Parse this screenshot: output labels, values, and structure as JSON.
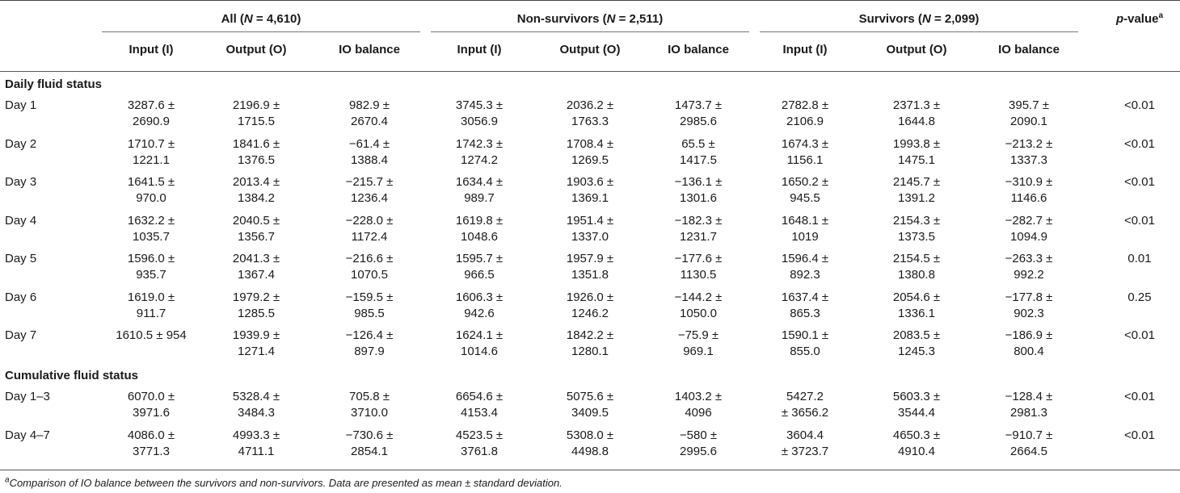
{
  "header": {
    "groups": [
      {
        "label": "All (N = 4,610)",
        "name_prefix": "All (",
        "n_symbol": "N",
        "name_suffix": " = 4,610)"
      },
      {
        "label": "Non-survivors (N = 2,511)",
        "name_prefix": "Non-survivors (",
        "n_symbol": "N",
        "name_suffix": " = 2,511)"
      },
      {
        "label": "Survivors (N = 2,099)",
        "name_prefix": "Survivors (",
        "n_symbol": "N",
        "name_suffix": " = 2,099)"
      }
    ],
    "subcolumns": [
      "Input (I)",
      "Output (O)",
      "IO balance"
    ],
    "pvalue_label": "p",
    "pvalue_suffix": "-value",
    "pvalue_sup": "a"
  },
  "sections": [
    {
      "title": "Daily fluid status",
      "rows": [
        {
          "label": "Day 1",
          "values": [
            [
              "3287.6 ±",
              "2690.9"
            ],
            [
              "2196.9 ±",
              "1715.5"
            ],
            [
              "982.9 ±",
              "2670.4"
            ],
            [
              "3745.3 ±",
              "3056.9"
            ],
            [
              "2036.2 ±",
              "1763.3"
            ],
            [
              "1473.7 ±",
              "2985.6"
            ],
            [
              "2782.8 ±",
              "2106.9"
            ],
            [
              "2371.3 ±",
              "1644.8"
            ],
            [
              "395.7 ±",
              "2090.1"
            ]
          ],
          "p": "<0.01"
        },
        {
          "label": "Day 2",
          "values": [
            [
              "1710.7 ±",
              "1221.1"
            ],
            [
              "1841.6 ±",
              "1376.5"
            ],
            [
              "−61.4 ±",
              "1388.4"
            ],
            [
              "1742.3 ±",
              "1274.2"
            ],
            [
              "1708.4 ±",
              "1269.5"
            ],
            [
              "65.5 ±",
              "1417.5"
            ],
            [
              "1674.3 ±",
              "1156.1"
            ],
            [
              "1993.8 ±",
              "1475.1"
            ],
            [
              "−213.2 ±",
              "1337.3"
            ]
          ],
          "p": "<0.01"
        },
        {
          "label": "Day 3",
          "values": [
            [
              "1641.5 ±",
              "970.0"
            ],
            [
              "2013.4 ±",
              "1384.2"
            ],
            [
              "−215.7 ±",
              "1236.4"
            ],
            [
              "1634.4 ±",
              "989.7"
            ],
            [
              "1903.6 ±",
              "1369.1"
            ],
            [
              "−136.1 ±",
              "1301.6"
            ],
            [
              "1650.2 ±",
              "945.5"
            ],
            [
              "2145.7 ±",
              "1391.2"
            ],
            [
              "−310.9 ±",
              "1146.6"
            ]
          ],
          "p": "<0.01"
        },
        {
          "label": "Day 4",
          "values": [
            [
              "1632.2 ±",
              "1035.7"
            ],
            [
              "2040.5 ±",
              "1356.7"
            ],
            [
              "−228.0 ±",
              "1172.4"
            ],
            [
              "1619.8 ±",
              "1048.6"
            ],
            [
              "1951.4 ±",
              "1337.0"
            ],
            [
              "−182.3 ±",
              "1231.7"
            ],
            [
              "1648.1 ±",
              "1019"
            ],
            [
              "2154.3 ±",
              "1373.5"
            ],
            [
              "−282.7 ±",
              "1094.9"
            ]
          ],
          "p": "<0.01"
        },
        {
          "label": "Day 5",
          "values": [
            [
              "1596.0 ±",
              "935.7"
            ],
            [
              "2041.3 ±",
              "1367.4"
            ],
            [
              "−216.6 ±",
              "1070.5"
            ],
            [
              "1595.7 ±",
              "966.5"
            ],
            [
              "1957.9 ±",
              "1351.8"
            ],
            [
              "−177.6 ±",
              "1130.5"
            ],
            [
              "1596.4 ±",
              "892.3"
            ],
            [
              "2154.5 ±",
              "1380.8"
            ],
            [
              "−263.3 ±",
              "992.2"
            ]
          ],
          "p": "0.01"
        },
        {
          "label": "Day 6",
          "values": [
            [
              "1619.0 ±",
              "911.7"
            ],
            [
              "1979.2 ±",
              "1285.5"
            ],
            [
              "−159.5 ±",
              "985.5"
            ],
            [
              "1606.3 ±",
              "942.6"
            ],
            [
              "1926.0 ±",
              "1246.2"
            ],
            [
              "−144.2 ±",
              "1050.0"
            ],
            [
              "1637.4 ±",
              "865.3"
            ],
            [
              "2054.6 ±",
              "1336.1"
            ],
            [
              "−177.8 ±",
              "902.3"
            ]
          ],
          "p": "0.25"
        },
        {
          "label": "Day 7",
          "values": [
            [
              "1610.5 ± 954",
              ""
            ],
            [
              "1939.9 ±",
              "1271.4"
            ],
            [
              "−126.4 ±",
              "897.9"
            ],
            [
              "1624.1 ±",
              "1014.6"
            ],
            [
              "1842.2 ±",
              "1280.1"
            ],
            [
              "−75.9 ±",
              "969.1"
            ],
            [
              "1590.1 ±",
              "855.0"
            ],
            [
              "2083.5 ±",
              "1245.3"
            ],
            [
              "−186.9 ±",
              "800.4"
            ]
          ],
          "p": "<0.01"
        }
      ]
    },
    {
      "title": "Cumulative fluid status",
      "rows": [
        {
          "label": "Day 1–3",
          "values": [
            [
              "6070.0 ±",
              "3971.6"
            ],
            [
              "5328.4 ±",
              "3484.3"
            ],
            [
              "705.8 ±",
              "3710.0"
            ],
            [
              "6654.6 ±",
              "4153.4"
            ],
            [
              "5075.6 ±",
              "3409.5"
            ],
            [
              "1403.2 ±",
              "4096"
            ],
            [
              "5427.2",
              "± 3656.2"
            ],
            [
              "5603.3 ±",
              "3544.4"
            ],
            [
              "−128.4 ±",
              "2981.3"
            ]
          ],
          "p": "<0.01"
        },
        {
          "label": "Day 4–7",
          "values": [
            [
              "4086.0 ±",
              "3771.3"
            ],
            [
              "4993.3 ±",
              "4711.1"
            ],
            [
              "−730.6 ±",
              "2854.1"
            ],
            [
              "4523.5 ±",
              "3761.8"
            ],
            [
              "5308.0 ±",
              "4498.8"
            ],
            [
              "−580 ±",
              "2995.6"
            ],
            [
              "3604.4",
              "± 3723.7"
            ],
            [
              "4650.3 ±",
              "4910.4"
            ],
            [
              "−910.7 ±",
              "2664.5"
            ]
          ],
          "p": "<0.01"
        }
      ]
    }
  ],
  "footnote": {
    "sup": "a",
    "text": "Comparison of IO balance between the survivors and non-survivors. Data are presented as mean ± standard deviation."
  }
}
